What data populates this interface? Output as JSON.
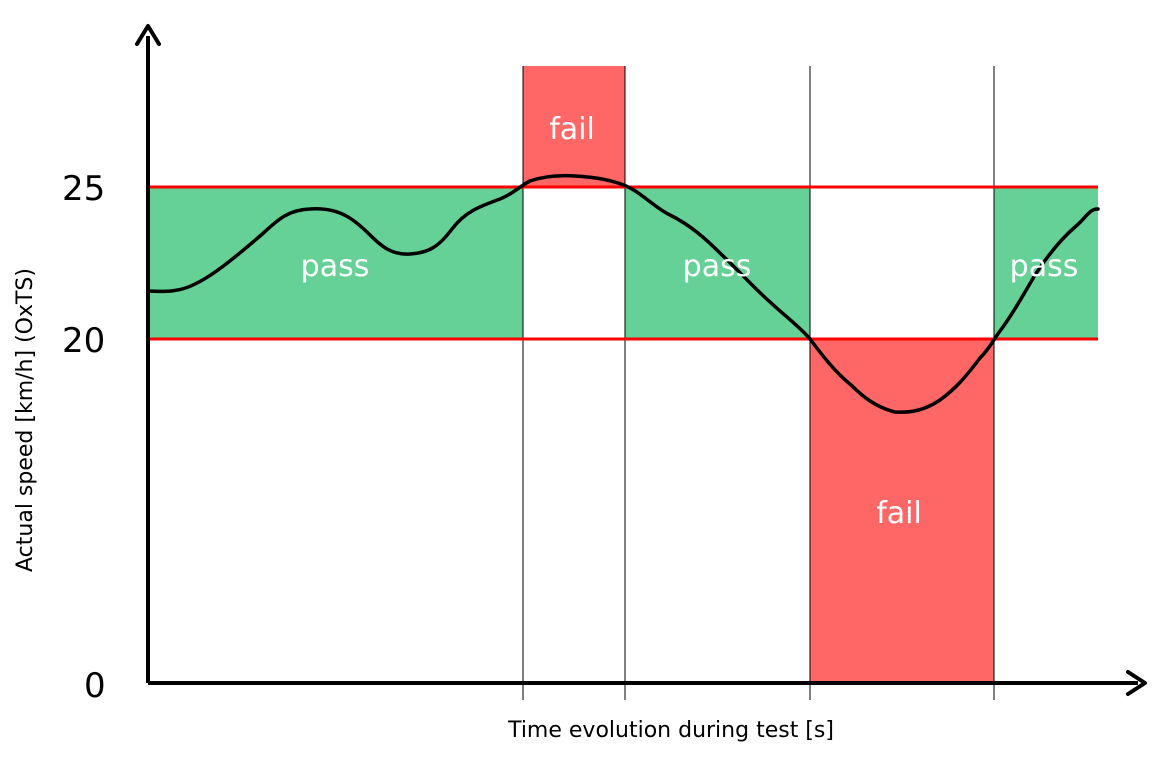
{
  "colors": {
    "pass_fill": "#66d196",
    "fail_fill": "#ff6666",
    "limit_line": "#ff0000",
    "speed_curve": "#000000",
    "axis": "#000000"
  },
  "axes": {
    "y_title": "Actual speed [km/h] (OxTS)",
    "x_title": "Time evolution during test [s]",
    "y_ticks": [
      "25",
      "20",
      "0"
    ]
  },
  "limits": {
    "upper_kmh": 25,
    "lower_kmh": 20
  },
  "zones": [
    {
      "label": "pass",
      "result": "pass"
    },
    {
      "label": "fail",
      "result": "fail"
    },
    {
      "label": "pass",
      "result": "pass"
    },
    {
      "label": "fail",
      "result": "fail"
    },
    {
      "label": "pass",
      "result": "pass"
    }
  ]
}
